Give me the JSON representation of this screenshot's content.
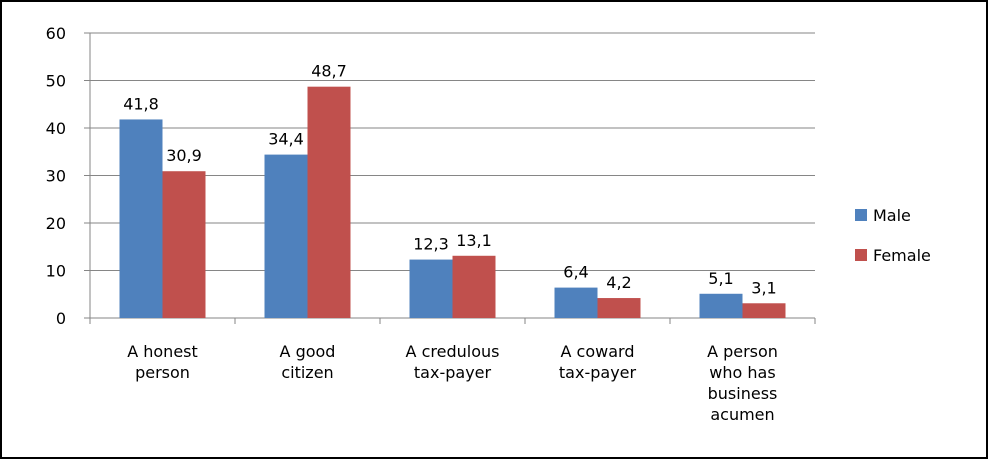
{
  "chart_data": {
    "type": "bar",
    "categories": [
      "A honest\nperson",
      "A good\ncitizen",
      "A credulous\ntax-payer",
      "A coward\ntax-payer",
      "A person\nwho has\nbusiness\nacumen"
    ],
    "series": [
      {
        "name": "Male",
        "color": "#4f81bd",
        "values": [
          41.8,
          34.4,
          12.3,
          6.4,
          5.1
        ],
        "value_labels": [
          "41,8",
          "34,4",
          "12,3",
          "6,4",
          "5,1"
        ]
      },
      {
        "name": "Female",
        "color": "#c0504d",
        "values": [
          30.9,
          48.7,
          13.1,
          4.2,
          3.1
        ],
        "value_labels": [
          "30,9",
          "48,7",
          "13,1",
          "4,2",
          "3,1"
        ]
      }
    ],
    "ylim": [
      0,
      60
    ],
    "yticks": [
      0,
      10,
      20,
      30,
      40,
      50,
      60
    ],
    "grid": true,
    "legend": "right"
  }
}
